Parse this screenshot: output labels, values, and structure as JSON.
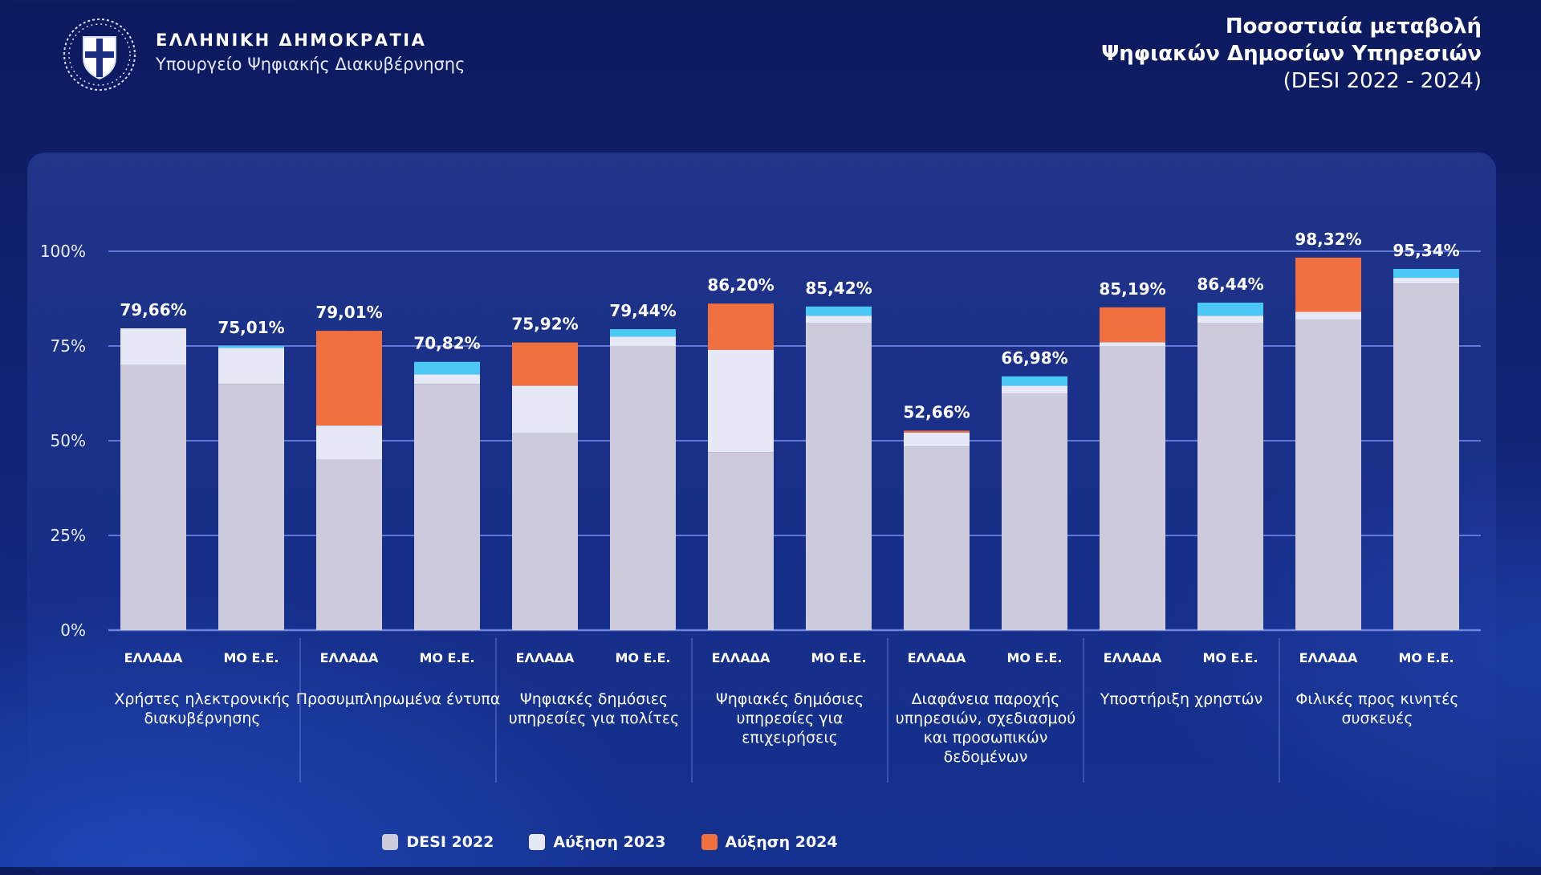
{
  "header": {
    "gov_name": "ΕΛΛΗΝΙΚΗ ΔΗΜΟΚΡΑΤΙΑ",
    "ministry": "Υπουργείο Ψηφιακής Διακυβέρνησης",
    "title_line1": "Ποσοστιαία μεταβολή",
    "title_line2": "Ψηφιακών Δημοσίων Υπηρεσιών",
    "title_line3": "(DESI 2022 - 2024)"
  },
  "colors": {
    "desi2022": "#cdcbdb",
    "increase2023": "#e6e9f5",
    "increase2023_eu": "#4cc8f4",
    "increase2024": "#f07040",
    "axis_line": "#6d84e0",
    "grid_line": "#5f78d8"
  },
  "chart_data": {
    "type": "bar",
    "stacked": true,
    "ylim": [
      0,
      100
    ],
    "yticks": [
      "0%",
      "25%",
      "50%",
      "75%",
      "100%"
    ],
    "bar_labels": [
      "ΕΛΛΑΔΑ",
      "ΜΟ Ε.Ε.",
      "ΕΛΛΑΔΑ",
      "ΜΟ Ε.Ε.",
      "ΕΛΛΑΔΑ",
      "ΜΟ Ε.Ε.",
      "ΕΛΛΑΔΑ",
      "ΜΟ Ε.Ε.",
      "ΕΛΛΑΔΑ",
      "ΜΟ Ε.Ε.",
      "ΕΛΛΑΔΑ",
      "ΜΟ Ε.Ε.",
      "ΕΛΛΑΔΑ",
      "ΜΟ Ε.Ε."
    ],
    "groups": [
      "Χρήστες ηλεκτρονικής διακυβέρνησης",
      "Προσυμπληρωμένα έντυπα",
      "Ψηφιακές δημόσιες υπηρεσίες για πολίτες",
      "Ψηφιακές δημόσιες υπηρεσίες για επιχειρήσεις",
      "Διαφάνεια παροχής υπηρεσιών, σχεδιασμού και προσωπικών δεδομένων",
      "Υποστήριξη χρηστών",
      "Φιλικές προς κινητές συσκευές"
    ],
    "series": [
      {
        "name": "DESI 2022",
        "values": [
          70.0,
          65.0,
          45.0,
          65.0,
          52.0,
          75.0,
          47.0,
          81.0,
          48.5,
          62.5,
          75.0,
          81.0,
          82.0,
          91.5
        ]
      },
      {
        "name": "Αύξηση 2023",
        "values": [
          9.66,
          9.5,
          9.0,
          2.5,
          12.5,
          2.5,
          27.0,
          2.0,
          3.66,
          2.0,
          1.0,
          2.0,
          2.0,
          1.5
        ]
      },
      {
        "name": "Αύξηση 2024",
        "values": [
          0,
          0.51,
          25.01,
          3.32,
          11.42,
          1.94,
          12.2,
          2.42,
          0.5,
          2.48,
          9.19,
          3.44,
          14.32,
          2.34
        ]
      }
    ],
    "totals": [
      "79,66%",
      "75,01%",
      "79,01%",
      "70,82%",
      "75,92%",
      "79,44%",
      "86,20%",
      "85,42%",
      "52,66%",
      "66,98%",
      "85,19%",
      "86,44%",
      "98,32%",
      "95,34%"
    ]
  },
  "legend": [
    {
      "label": "DESI 2022",
      "color": "#cdcbdb"
    },
    {
      "label": "Αύξηση 2023",
      "color": "#e6e9f5"
    },
    {
      "label": "Αύξηση 2024",
      "color": "#f07040"
    }
  ]
}
